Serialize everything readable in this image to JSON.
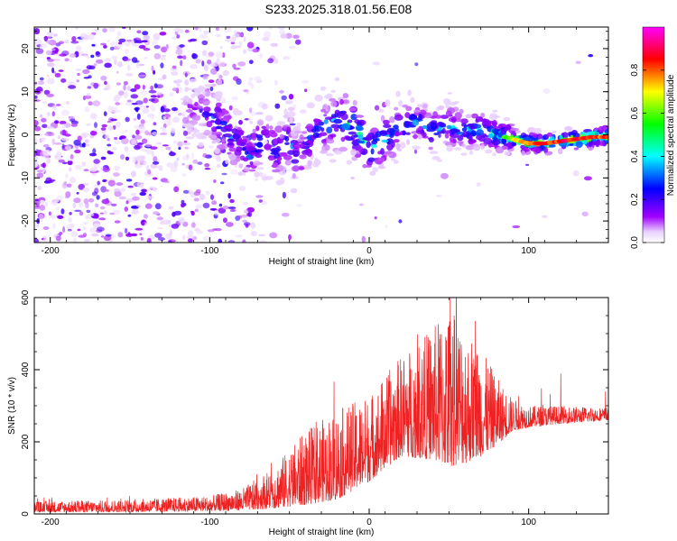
{
  "title": "S233.2025.318.01.56.E08",
  "colors": {
    "snr_line": "#ee2222",
    "axis": "#000000"
  },
  "chart_data": [
    {
      "type": "heatmap",
      "xlabel": "Height of straight line (km)",
      "ylabel": "Frequency (Hz)",
      "xlim": [
        -210,
        150
      ],
      "ylim": [
        -25,
        25
      ],
      "xticks": [
        -200,
        -100,
        0,
        100
      ],
      "yticks": [
        -20,
        -10,
        0,
        10,
        20
      ],
      "colorbar": {
        "label": "Normalized spectral amplitude",
        "range": [
          0,
          1
        ],
        "ticks": [
          "0.0",
          "0.2",
          "0.4",
          "0.6",
          "0.8"
        ],
        "tick_values": [
          0.0,
          0.2,
          0.4,
          0.6,
          0.8
        ],
        "colors": [
          "#ffffff",
          "#a000ff",
          "#0000ff",
          "#00ffff",
          "#00ff00",
          "#ffff00",
          "#ff0000",
          "#ff00ff"
        ]
      },
      "ridge": {
        "x": [
          -110,
          -100,
          -90,
          -80,
          -75,
          -70,
          -65,
          -60,
          -55,
          -50,
          -45,
          -40,
          -35,
          -30,
          -20,
          -10,
          0,
          5,
          10,
          20,
          30,
          40,
          50,
          60,
          70,
          80,
          90,
          100,
          110,
          120,
          130,
          140,
          150
        ],
        "y": [
          6,
          5,
          1,
          -3,
          -5,
          -2,
          -1,
          -4,
          -3,
          -1,
          -6,
          -2,
          0,
          2,
          3,
          2,
          -3,
          -2,
          -1,
          2,
          3,
          1,
          2,
          1,
          1,
          0,
          -1,
          -2,
          -2,
          -1.5,
          -1,
          -0.5,
          -0.5
        ],
        "amplitude": [
          0.15,
          0.3,
          0.35,
          0.3,
          0.3,
          0.35,
          0.3,
          0.35,
          0.3,
          0.3,
          0.35,
          0.3,
          0.3,
          0.35,
          0.45,
          0.5,
          0.45,
          0.45,
          0.4,
          0.35,
          0.35,
          0.4,
          0.4,
          0.45,
          0.5,
          0.55,
          0.7,
          0.85,
          0.9,
          0.9,
          0.95,
          0.9,
          0.85
        ]
      }
    },
    {
      "type": "line",
      "xlabel": "Height of straight line (km)",
      "ylabel": "SNR (10 * v/v)",
      "xlim": [
        -210,
        150
      ],
      "ylim": [
        0,
        600
      ],
      "xticks": [
        -200,
        -100,
        0,
        100
      ],
      "yticks": [
        0,
        200,
        400,
        600
      ],
      "series": [
        {
          "name": "SNR",
          "envelope_x": [
            -210,
            -150,
            -100,
            -80,
            -60,
            -40,
            -20,
            0,
            20,
            40,
            50,
            60,
            70,
            80,
            90,
            100,
            120,
            150
          ],
          "envelope_low": [
            5,
            5,
            8,
            10,
            15,
            25,
            40,
            90,
            160,
            150,
            130,
            140,
            160,
            190,
            230,
            240,
            250,
            260
          ],
          "envelope_high": [
            35,
            40,
            50,
            70,
            130,
            230,
            290,
            330,
            440,
            520,
            580,
            520,
            460,
            380,
            320,
            300,
            300,
            295
          ]
        }
      ]
    }
  ]
}
